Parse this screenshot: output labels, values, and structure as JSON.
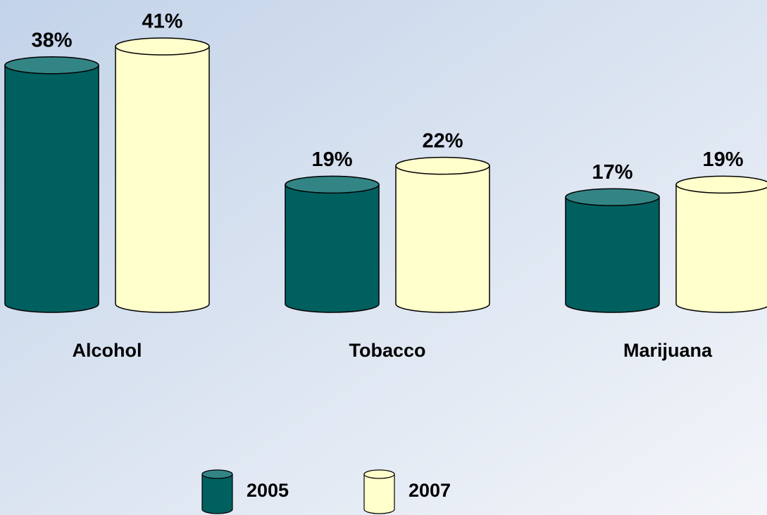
{
  "chart_data": {
    "type": "bar",
    "categories": [
      "Alcohol",
      "Tobacco",
      "Marijuana"
    ],
    "series": [
      {
        "name": "2005",
        "color": "#006060",
        "values": [
          38,
          19,
          17
        ],
        "value_labels": [
          "38%",
          "19%",
          "17%"
        ]
      },
      {
        "name": "2007",
        "color": "#ffffcc",
        "values": [
          41,
          22,
          19
        ],
        "value_labels": [
          "41%",
          "22%",
          "19%"
        ]
      }
    ],
    "legend": "bottom"
  }
}
